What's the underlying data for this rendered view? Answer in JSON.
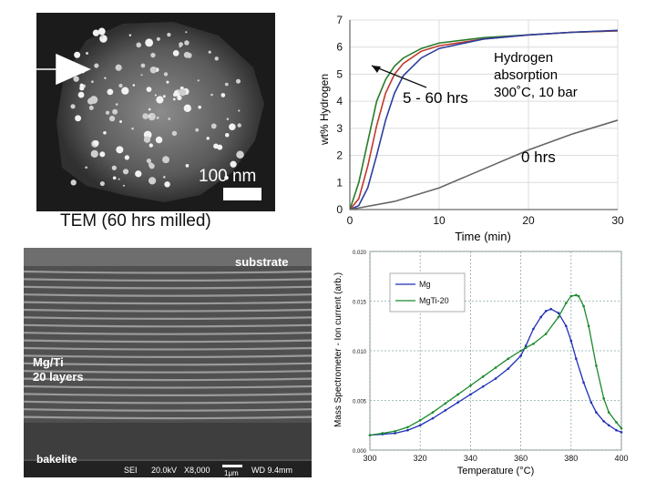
{
  "tem": {
    "scale_label": "100 nm",
    "caption": "TEM (60 hrs milled)"
  },
  "sem": {
    "labels": {
      "substrate": "substrate",
      "mgti": "Mg/Ti",
      "layers": "20 layers",
      "bakelite": "bakelite"
    },
    "info_bar": {
      "sei": "SEI",
      "kv": "20.0kV",
      "mag": "X8,000",
      "scale": "1μm",
      "wd": "WD 9.4mm"
    }
  },
  "chart_data": [
    {
      "type": "line",
      "title": "",
      "xlabel": "Time (min)",
      "ylabel": "wt% Hydrogen",
      "xlim": [
        0,
        30
      ],
      "ylim": [
        0,
        7
      ],
      "x_ticks": [
        0,
        10,
        20,
        30
      ],
      "y_ticks": [
        0,
        1,
        2,
        3,
        4,
        5,
        6,
        7
      ],
      "grid": true,
      "series": [
        {
          "color": "#2a7a2a",
          "x": [
            0,
            1,
            2,
            3,
            4,
            5,
            6,
            8,
            10,
            15,
            20,
            25,
            30
          ],
          "y": [
            0,
            1.0,
            2.5,
            4.0,
            4.8,
            5.3,
            5.6,
            5.95,
            6.15,
            6.35,
            6.45,
            6.55,
            6.6
          ]
        },
        {
          "color": "#c0392b",
          "x": [
            0,
            1,
            2,
            3,
            4,
            5,
            6,
            8,
            10,
            15,
            20,
            25,
            30
          ],
          "y": [
            0,
            0.4,
            1.6,
            3.1,
            4.3,
            5.0,
            5.4,
            5.85,
            6.05,
            6.3,
            6.45,
            6.55,
            6.6
          ]
        },
        {
          "color": "#2c3e9e",
          "x": [
            0,
            1,
            2,
            3,
            4,
            5,
            6,
            8,
            10,
            15,
            20,
            25,
            30
          ],
          "y": [
            0,
            0.15,
            0.8,
            2.0,
            3.3,
            4.3,
            4.95,
            5.6,
            5.95,
            6.3,
            6.45,
            6.55,
            6.62
          ]
        },
        {
          "color": "#666666",
          "x": [
            0,
            5,
            10,
            15,
            20,
            25,
            30
          ],
          "y": [
            0,
            0.3,
            0.8,
            1.5,
            2.2,
            2.8,
            3.3
          ]
        }
      ],
      "annotations": {
        "group_5_60": "5 - 60 hrs",
        "zero_hrs": "0 hrs",
        "note_line1": "Hydrogen",
        "note_line2": "absorption",
        "note_line3": "300˚C, 10 bar"
      }
    },
    {
      "type": "line",
      "title": "",
      "xlabel": "Temperature (°C)",
      "ylabel": "Mass Spectrometer - Ion current (arb.)",
      "xlim": [
        300,
        400
      ],
      "ylim": [
        0,
        0.02
      ],
      "x_ticks": [
        300,
        320,
        340,
        360,
        380,
        400
      ],
      "y_ticks": [
        "0.000",
        "0.005",
        "0.010",
        "0.015",
        "0.020"
      ],
      "grid": true,
      "legend": "top-left",
      "series": [
        {
          "name": "Mg",
          "color": "#1f2fb5",
          "x": [
            300,
            305,
            310,
            315,
            320,
            325,
            330,
            335,
            340,
            345,
            350,
            355,
            360,
            362,
            365,
            368,
            370,
            372,
            375,
            378,
            380,
            382,
            385,
            388,
            390,
            393,
            395,
            398,
            400
          ],
          "y": [
            0.0015,
            0.0016,
            0.0017,
            0.002,
            0.0025,
            0.0032,
            0.004,
            0.0048,
            0.0056,
            0.0064,
            0.0072,
            0.0082,
            0.0095,
            0.0105,
            0.0122,
            0.0134,
            0.014,
            0.0142,
            0.0138,
            0.0125,
            0.011,
            0.0092,
            0.0068,
            0.0048,
            0.0038,
            0.0029,
            0.0025,
            0.002,
            0.0018
          ]
        },
        {
          "name": "MgTi-20",
          "color": "#1a8a2a",
          "x": [
            300,
            305,
            310,
            315,
            320,
            325,
            330,
            335,
            340,
            345,
            350,
            355,
            360,
            362,
            365,
            370,
            375,
            378,
            380,
            382,
            383,
            385,
            387,
            390,
            393,
            395,
            398,
            400
          ],
          "y": [
            0.0015,
            0.0017,
            0.0019,
            0.0023,
            0.003,
            0.0038,
            0.0047,
            0.0056,
            0.0065,
            0.0074,
            0.0083,
            0.0092,
            0.01,
            0.0103,
            0.0107,
            0.0117,
            0.0134,
            0.0148,
            0.0155,
            0.0156,
            0.0155,
            0.0145,
            0.0125,
            0.0085,
            0.0052,
            0.0038,
            0.0028,
            0.0022
          ]
        }
      ]
    }
  ]
}
